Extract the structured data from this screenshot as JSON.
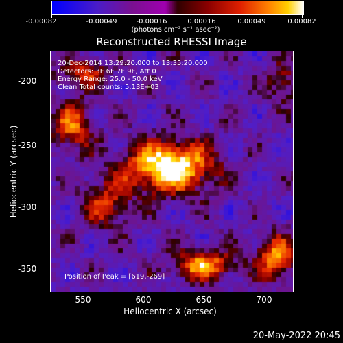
{
  "colorbar": {
    "ticks": [
      "-0.00082",
      "-0.00049",
      "-0.00016",
      "0.00016",
      "0.00049",
      "0.00082"
    ],
    "unit": "(photons cm⁻² s⁻¹ asec⁻²)"
  },
  "title": "Reconstructed RHESSI Image",
  "info": {
    "line1": "20-Dec-2014 13:29:20.000 to 13:35:20.000",
    "line2": "Detectors: 3F 6F 7F 9F, Att 0",
    "line3": "Energy Range: 25.0 - 50.0 keV",
    "line4": "Clean     Total counts: 5.13E+03"
  },
  "peak": "Position of Peak = [619,-269]",
  "x_axis": {
    "label": "Heliocentric X (arcsec)",
    "ticks": [
      "550",
      "600",
      "650",
      "700"
    ]
  },
  "y_axis": {
    "label": "Heliocentric Y (arcsec)",
    "ticks": [
      "-200",
      "-250",
      "-300",
      "-350"
    ]
  },
  "timestamp": "20-May-2022 20:45"
}
